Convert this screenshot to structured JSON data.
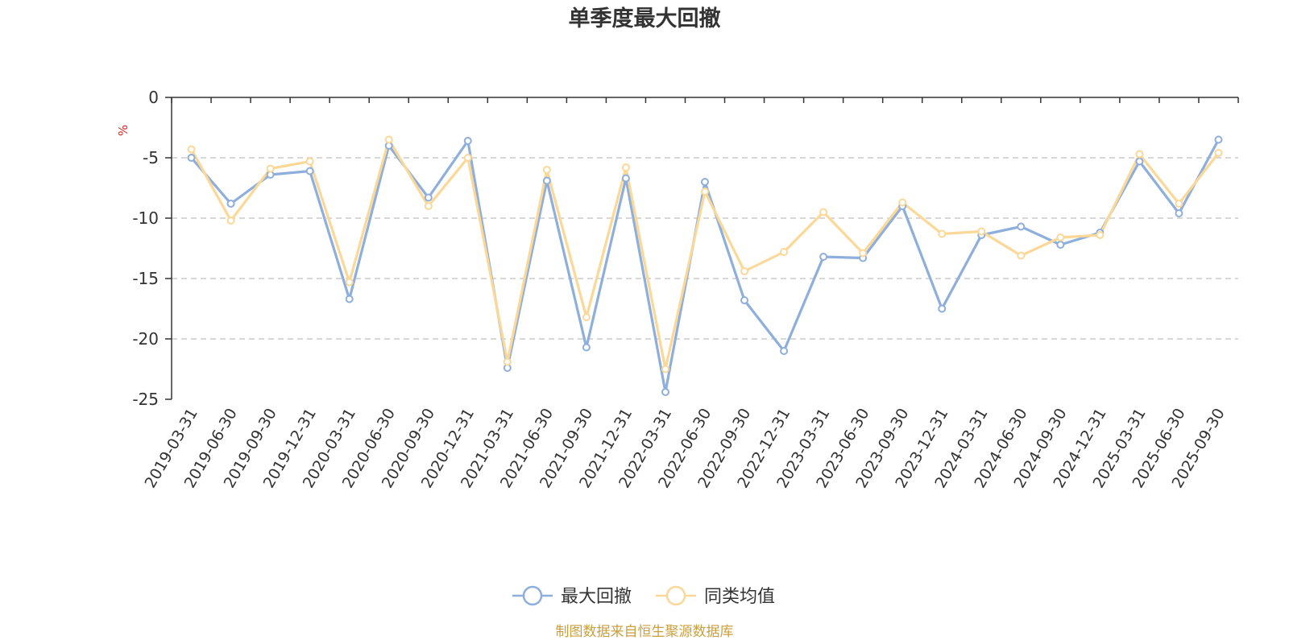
{
  "chart_data": {
    "type": "line",
    "title": "单季度最大回撤",
    "ylabel": "%",
    "ylim": [
      -25,
      0
    ],
    "yticks": [
      0,
      -5,
      -10,
      -15,
      -20,
      -25
    ],
    "grid": "horizontal dashed",
    "categories": [
      "2019-03-31",
      "2019-06-30",
      "2019-09-30",
      "2019-12-31",
      "2020-03-31",
      "2020-06-30",
      "2020-09-30",
      "2020-12-31",
      "2021-03-31",
      "2021-06-30",
      "2021-09-30",
      "2021-12-31",
      "2022-03-31",
      "2022-06-30",
      "2022-09-30",
      "2022-12-31",
      "2023-03-31",
      "2023-06-30",
      "2023-09-30",
      "2023-12-31",
      "2024-03-31",
      "2024-06-30",
      "2024-09-30",
      "2024-12-31",
      "2025-03-31",
      "2025-06-30",
      "2025-09-30"
    ],
    "series": [
      {
        "name": "最大回撤",
        "color": "#8eaedc",
        "values": [
          -5.0,
          -8.8,
          -6.4,
          -6.1,
          -16.7,
          -4.0,
          -8.3,
          -3.6,
          -22.4,
          -6.9,
          -20.7,
          -6.7,
          -24.4,
          -7.0,
          -16.8,
          -21.0,
          -13.2,
          -13.3,
          -9.0,
          -17.5,
          -11.4,
          -10.7,
          -12.2,
          -11.2,
          -5.3,
          -9.6,
          -3.5
        ]
      },
      {
        "name": "同类均值",
        "color": "#fbd898",
        "values": [
          -4.3,
          -10.2,
          -5.9,
          -5.3,
          -15.3,
          -3.5,
          -9.0,
          -5.0,
          -21.9,
          -6.0,
          -18.2,
          -5.8,
          -22.5,
          -7.8,
          -14.4,
          -12.8,
          -9.5,
          -12.9,
          -8.7,
          -11.3,
          -11.1,
          -13.1,
          -11.6,
          -11.4,
          -4.7,
          -8.8,
          -4.6
        ]
      }
    ],
    "legend_position": "bottom-center"
  },
  "source_text": "制图数据来自恒生聚源数据库"
}
